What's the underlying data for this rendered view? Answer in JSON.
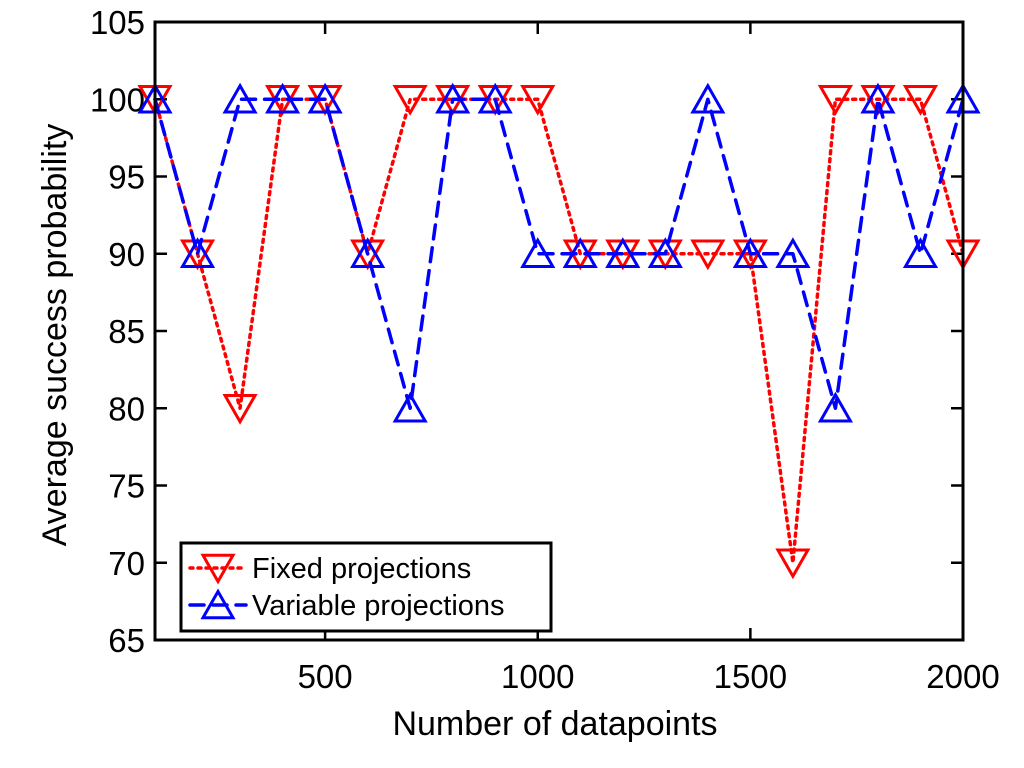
{
  "chart_data": {
    "type": "line",
    "title": "",
    "xlabel": "Number of datapoints",
    "ylabel": "Average success probability",
    "xlim": [
      100,
      2000
    ],
    "ylim": [
      65,
      105
    ],
    "xticks": [
      500,
      1000,
      1500,
      2000
    ],
    "yticks": [
      65,
      70,
      75,
      80,
      85,
      90,
      95,
      100,
      105
    ],
    "grid": false,
    "legend_position": "bottom-left",
    "x": [
      100,
      200,
      300,
      400,
      500,
      600,
      700,
      800,
      900,
      1000,
      1100,
      1200,
      1300,
      1400,
      1500,
      1600,
      1700,
      1800,
      1900,
      2000
    ],
    "series": [
      {
        "name": "Fixed projections",
        "color": "#ff0000",
        "line_style": "dotted",
        "marker": "triangle-down",
        "values": [
          100,
          90,
          80,
          100,
          100,
          90,
          100,
          100,
          100,
          100,
          90,
          90,
          90,
          90,
          90,
          70,
          100,
          100,
          100,
          90
        ]
      },
      {
        "name": "Variable projections",
        "color": "#0000ff",
        "line_style": "dashed",
        "marker": "triangle-up",
        "values": [
          100,
          90,
          100,
          100,
          100,
          90,
          80,
          100,
          100,
          90,
          90,
          90,
          90,
          100,
          90,
          90,
          80,
          100,
          90,
          100
        ]
      }
    ]
  }
}
